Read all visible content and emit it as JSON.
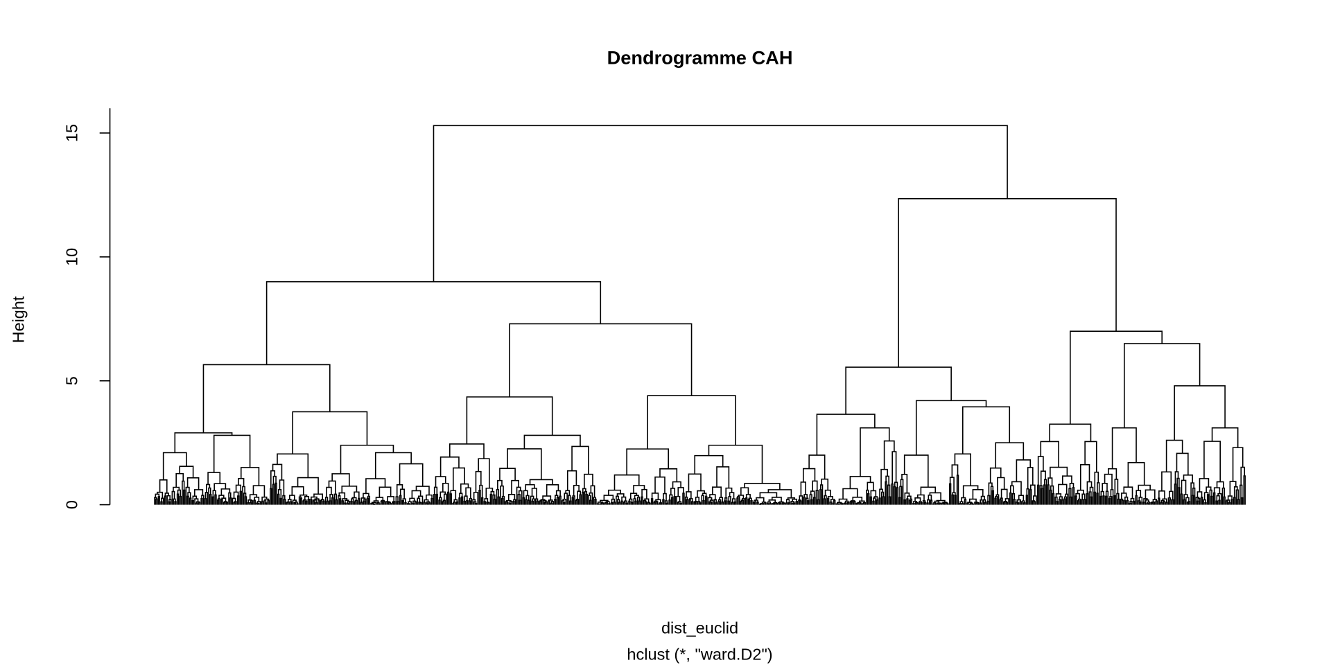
{
  "chart_data": {
    "type": "dendrogram",
    "title": "Dendrogramme CAH",
    "xlabel": "dist_euclid",
    "sub": "hclust (*, \"ward.D2\")",
    "ylabel": "Height",
    "ylim": [
      0,
      16
    ],
    "yticks": [
      0,
      5,
      10,
      15
    ],
    "ytick_labels": [
      "0",
      "5",
      "10",
      "15"
    ],
    "tree": {
      "h": 15.3,
      "c": [
        {
          "h": 9.0,
          "c": [
            {
              "h": 5.65,
              "c": [
                {
                  "h": 2.9,
                  "c": [
                    {
                      "h": 2.1,
                      "c": [
                        {
                          "h": 1.0,
                          "n": 14
                        },
                        {
                          "h": 1.55,
                          "n": 26
                        }
                      ]
                    },
                    {
                      "h": 2.8,
                      "c": [
                        {
                          "h": 1.3,
                          "n": 22
                        },
                        {
                          "h": 1.5,
                          "n": 30
                        }
                      ]
                    }
                  ]
                },
                {
                  "h": 3.75,
                  "c": [
                    {
                      "h": 2.05,
                      "n": 44
                    },
                    {
                      "h": 2.4,
                      "c": [
                        {
                          "h": 1.25,
                          "n": 28
                        },
                        {
                          "h": 2.1,
                          "c": [
                            {
                              "h": 1.05,
                              "n": 28
                            },
                            {
                              "h": 1.65,
                              "n": 30
                            }
                          ]
                        }
                      ]
                    }
                  ]
                }
              ]
            },
            {
              "h": 7.3,
              "c": [
                {
                  "h": 4.35,
                  "c": [
                    {
                      "h": 2.45,
                      "n": 50
                    },
                    {
                      "h": 2.8,
                      "n": 80
                    }
                  ]
                },
                {
                  "h": 4.4,
                  "c": [
                    {
                      "h": 2.25,
                      "n": 70
                    },
                    {
                      "h": 2.4,
                      "n": 90
                    }
                  ]
                }
              ]
            }
          ]
        },
        {
          "h": 12.35,
          "c": [
            {
              "h": 5.55,
              "c": [
                {
                  "h": 3.65,
                  "c": [
                    {
                      "h": 2.0,
                      "n": 30
                    },
                    {
                      "h": 3.1,
                      "n": 50
                    }
                  ]
                },
                {
                  "h": 4.2,
                  "c": [
                    {
                      "h": 2.0,
                      "n": 40
                    },
                    {
                      "h": 3.95,
                      "c": [
                        {
                          "h": 2.05,
                          "n": 30
                        },
                        {
                          "h": 2.5,
                          "n": 40
                        }
                      ]
                    }
                  ]
                }
              ]
            },
            {
              "h": 7.0,
              "c": [
                {
                  "h": 3.25,
                  "c": [
                    {
                      "h": 2.55,
                      "n": 30
                    },
                    {
                      "h": 2.55,
                      "n": 20
                    }
                  ]
                },
                {
                  "h": 6.5,
                  "c": [
                    {
                      "h": 3.1,
                      "c": [
                        {
                          "h": 1.45,
                          "n": 16
                        },
                        {
                          "h": 1.7,
                          "n": 30
                        }
                      ]
                    },
                    {
                      "h": 4.8,
                      "c": [
                        {
                          "h": 2.6,
                          "n": 30
                        },
                        {
                          "h": 3.1,
                          "n": 40
                        }
                      ]
                    }
                  ]
                }
              ]
            }
          ]
        }
      ]
    }
  }
}
